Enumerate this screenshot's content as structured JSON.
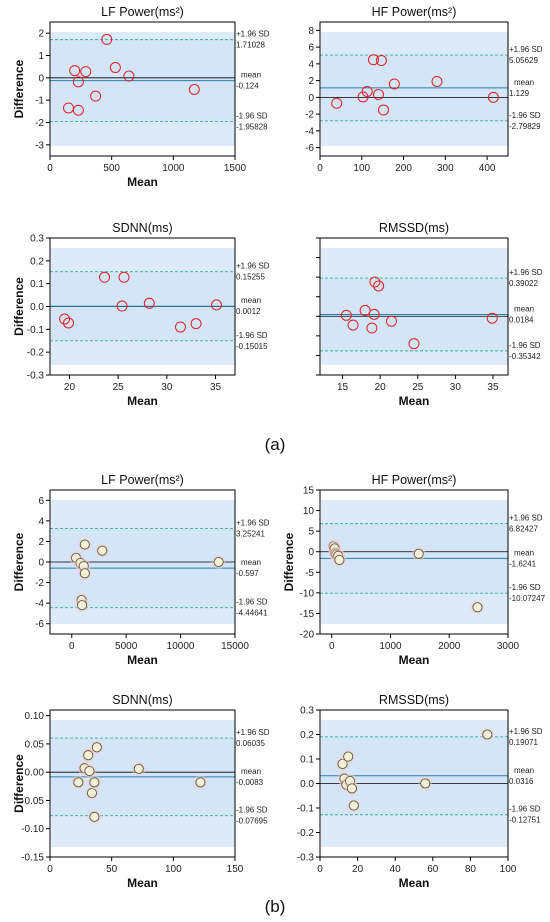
{
  "panel_labels": [
    "(a)",
    "(b)"
  ],
  "chart_data": [
    {
      "type": "scatter",
      "title": "LF Power(ms²)",
      "xlabel": "Mean",
      "ylabel": "Difference",
      "xlim": [
        0,
        1500
      ],
      "ylim": [
        -3.5,
        2.5
      ],
      "xticks": [
        0,
        500,
        1000,
        1500
      ],
      "yticks": [
        -3,
        -2,
        -1,
        0,
        1,
        2
      ],
      "mean": -0.124,
      "upper": 1.71028,
      "lower": -1.95828,
      "mean_label": "mean",
      "upper_label": "+1.96 SD",
      "lower_label": "-1.96 SD",
      "mean_text": "-0.124",
      "upper_text": "1.71028",
      "lower_text": "-1.95828",
      "marker": "red",
      "points": [
        {
          "x": 200,
          "y": 0.32
        },
        {
          "x": 230,
          "y": -0.18
        },
        {
          "x": 290,
          "y": 0.28
        },
        {
          "x": 370,
          "y": -0.82
        },
        {
          "x": 460,
          "y": 1.72
        },
        {
          "x": 530,
          "y": 0.46
        },
        {
          "x": 640,
          "y": 0.08
        },
        {
          "x": 150,
          "y": -1.35
        },
        {
          "x": 230,
          "y": -1.45
        },
        {
          "x": 1170,
          "y": -0.52
        }
      ]
    },
    {
      "type": "scatter",
      "title": "HF Power(ms²)",
      "xlabel": "",
      "ylabel": "",
      "xlim": [
        0,
        450
      ],
      "ylim": [
        -7,
        9
      ],
      "xticks": [
        0,
        100,
        200,
        300,
        400
      ],
      "yticks": [
        -6,
        -4,
        -2,
        0,
        2,
        4,
        6,
        8
      ],
      "mean": 1.129,
      "upper": 5.05629,
      "lower": -2.79829,
      "mean_label": "mean",
      "upper_label": "+1.96 SD",
      "lower_label": "-1.96 SD",
      "mean_text": "1.129",
      "upper_text": "5.05629",
      "lower_text": "-2.79829",
      "marker": "red",
      "points": [
        {
          "x": 40,
          "y": -0.7
        },
        {
          "x": 103,
          "y": 0.05
        },
        {
          "x": 113,
          "y": 0.7
        },
        {
          "x": 128,
          "y": 4.5
        },
        {
          "x": 140,
          "y": 0.35
        },
        {
          "x": 147,
          "y": 4.4
        },
        {
          "x": 152,
          "y": -1.5
        },
        {
          "x": 178,
          "y": 1.6
        },
        {
          "x": 280,
          "y": 1.9
        },
        {
          "x": 415,
          "y": 0.0
        }
      ]
    },
    {
      "type": "scatter",
      "title": "SDNN(ms)",
      "xlabel": "Mean",
      "ylabel": "Difference",
      "xlim": [
        18,
        37
      ],
      "ylim": [
        -0.3,
        0.3
      ],
      "xticks": [
        20,
        25,
        30,
        35
      ],
      "yticks": [
        -0.3,
        -0.2,
        -0.1,
        0.0,
        0.1,
        0.2,
        0.3
      ],
      "ytick_labels": [
        "-0.3",
        "-0.2",
        "-0.1",
        "0.0",
        "0.1",
        "0.2",
        "0.3"
      ],
      "mean": 0.0012,
      "upper": 0.15255,
      "lower": -0.15015,
      "mean_label": "mean",
      "upper_label": "+1.96 SD",
      "lower_label": "-1.96 SD",
      "mean_text": "0.0012",
      "upper_text": "0.15255",
      "lower_text": "-0.15015",
      "marker": "red",
      "points": [
        {
          "x": 19.5,
          "y": -0.055
        },
        {
          "x": 19.9,
          "y": -0.072
        },
        {
          "x": 23.6,
          "y": 0.128
        },
        {
          "x": 25.4,
          "y": 0.002
        },
        {
          "x": 25.6,
          "y": 0.128
        },
        {
          "x": 28.2,
          "y": 0.014
        },
        {
          "x": 31.4,
          "y": -0.09
        },
        {
          "x": 33.0,
          "y": -0.075
        },
        {
          "x": 35.1,
          "y": 0.007
        }
      ]
    },
    {
      "type": "scatter",
      "title": "RMSSD(ms)",
      "xlabel": "Mean",
      "ylabel": "",
      "xlim": [
        12,
        37
      ],
      "ylim": [
        -0.6,
        0.8
      ],
      "xticks": [
        15,
        20,
        25,
        30,
        35
      ],
      "yticks": [
        -0.6,
        -0.4,
        -0.2,
        0.0,
        0.2,
        0.4,
        0.6,
        0.8
      ],
      "ytick_labels": [
        "",
        "",
        "",
        "",
        "",
        "",
        "",
        ""
      ],
      "mean": 0.0184,
      "upper": 0.39022,
      "lower": -0.35342,
      "mean_label": "mean",
      "upper_label": "+1.96 SD",
      "lower_label": "-1.96 SD",
      "mean_text": "0.0184",
      "upper_text": "0.39022",
      "lower_text": "-0.35342",
      "marker": "red",
      "points": [
        {
          "x": 15.5,
          "y": 0.01
        },
        {
          "x": 16.4,
          "y": -0.09
        },
        {
          "x": 18.0,
          "y": 0.06
        },
        {
          "x": 18.9,
          "y": -0.12
        },
        {
          "x": 19.2,
          "y": 0.02
        },
        {
          "x": 19.3,
          "y": 0.35
        },
        {
          "x": 19.8,
          "y": 0.31
        },
        {
          "x": 21.5,
          "y": -0.05
        },
        {
          "x": 24.5,
          "y": -0.28
        },
        {
          "x": 34.9,
          "y": -0.02
        }
      ]
    },
    {
      "type": "scatter",
      "title": "LF Power(ms²)",
      "xlabel": "Mean",
      "ylabel": "Difference",
      "xlim": [
        -2000,
        15000
      ],
      "ylim": [
        -7,
        7
      ],
      "xticks": [
        0,
        5000,
        10000,
        15000
      ],
      "yticks": [
        -6,
        -4,
        -2,
        0,
        2,
        4,
        6
      ],
      "mean": -0.597,
      "upper": 3.25241,
      "lower": -4.44641,
      "mean_label": "mean",
      "upper_label": "+1.96 SD",
      "lower_label": "-1.96 SD",
      "mean_text": "-0.597",
      "upper_text": "3.25241",
      "lower_text": "-4.44641",
      "marker": "olive",
      "points": [
        {
          "x": 400,
          "y": 0.4
        },
        {
          "x": 800,
          "y": -0.1
        },
        {
          "x": 900,
          "y": -3.7
        },
        {
          "x": 950,
          "y": -4.2
        },
        {
          "x": 1100,
          "y": -0.4
        },
        {
          "x": 1200,
          "y": 1.7
        },
        {
          "x": 1200,
          "y": -1.1
        },
        {
          "x": 2800,
          "y": 1.1
        },
        {
          "x": 13500,
          "y": 0.0
        }
      ]
    },
    {
      "type": "scatter",
      "title": "HF Power(ms²)",
      "xlabel": "Mean",
      "ylabel": "Difference",
      "xlim": [
        -200,
        3000
      ],
      "ylim": [
        -20,
        15
      ],
      "xticks": [
        0,
        1000,
        2000,
        3000
      ],
      "yticks": [
        -20,
        -15,
        -10,
        -5,
        0,
        5,
        10,
        15
      ],
      "mean": -1.6241,
      "upper": 6.82427,
      "lower": -10.07247,
      "mean_label": "mean",
      "upper_label": "+1.96 SD",
      "lower_label": "-1.96 SD",
      "mean_text": "-1.6241",
      "upper_text": "6.82427",
      "lower_text": "-10.07247",
      "marker": "olive",
      "points": [
        {
          "x": 30,
          "y": 1.3
        },
        {
          "x": 50,
          "y": 0.8
        },
        {
          "x": 60,
          "y": -0.4
        },
        {
          "x": 80,
          "y": -0.7
        },
        {
          "x": 110,
          "y": -1.0
        },
        {
          "x": 130,
          "y": -2.0
        },
        {
          "x": 1480,
          "y": -0.5
        },
        {
          "x": 2480,
          "y": -13.5
        }
      ]
    },
    {
      "type": "scatter",
      "title": "SDNN(ms)",
      "xlabel": "Mean",
      "ylabel": "Difference",
      "xlim": [
        0,
        150
      ],
      "ylim": [
        -0.15,
        0.11
      ],
      "xticks": [
        0,
        50,
        100,
        150
      ],
      "yticks": [
        -0.15,
        -0.1,
        -0.05,
        0.0,
        0.05,
        0.1
      ],
      "ytick_labels": [
        "-0.15",
        "-0.10",
        "-0.05",
        "0.00",
        "0.05",
        "0.10"
      ],
      "mean": -0.0083,
      "upper": 0.06035,
      "lower": -0.07695,
      "mean_label": "mean",
      "upper_label": "+1.96 SD",
      "lower_label": "-1.96 SD",
      "mean_text": "-0.0083",
      "upper_text": "0.06035",
      "lower_text": "-0.07695",
      "marker": "olive",
      "points": [
        {
          "x": 23,
          "y": -0.018
        },
        {
          "x": 28,
          "y": 0.007
        },
        {
          "x": 31,
          "y": 0.03
        },
        {
          "x": 32,
          "y": 0.002
        },
        {
          "x": 34,
          "y": -0.037
        },
        {
          "x": 36,
          "y": -0.079
        },
        {
          "x": 36,
          "y": -0.018
        },
        {
          "x": 38,
          "y": 0.044
        },
        {
          "x": 72,
          "y": 0.006
        },
        {
          "x": 122,
          "y": -0.018
        }
      ]
    },
    {
      "type": "scatter",
      "title": "RMSSD(ms)",
      "xlabel": "Mean",
      "ylabel": "",
      "xlim": [
        0,
        100
      ],
      "ylim": [
        -0.3,
        0.3
      ],
      "xticks": [
        0,
        20,
        40,
        60,
        80,
        100
      ],
      "yticks": [
        -0.3,
        -0.2,
        -0.1,
        0.0,
        0.1,
        0.2,
        0.3
      ],
      "ytick_labels": [
        "-0.3",
        "-0.2",
        "-0.1",
        "0.0",
        "0.1",
        "0.2",
        "0.3"
      ],
      "mean": 0.0316,
      "upper": 0.19071,
      "lower": -0.12751,
      "mean_label": "mean",
      "upper_label": "+1.96 SD",
      "lower_label": "-1.96 SD",
      "mean_text": "0.0316",
      "upper_text": "0.19071",
      "lower_text": "-0.12751",
      "marker": "olive",
      "points": [
        {
          "x": 12,
          "y": 0.08
        },
        {
          "x": 13,
          "y": 0.02
        },
        {
          "x": 14,
          "y": -0.005
        },
        {
          "x": 15,
          "y": 0.11
        },
        {
          "x": 16,
          "y": 0.01
        },
        {
          "x": 17,
          "y": -0.02
        },
        {
          "x": 18,
          "y": -0.09
        },
        {
          "x": 56,
          "y": 0.0
        },
        {
          "x": 89,
          "y": 0.2
        }
      ]
    }
  ]
}
